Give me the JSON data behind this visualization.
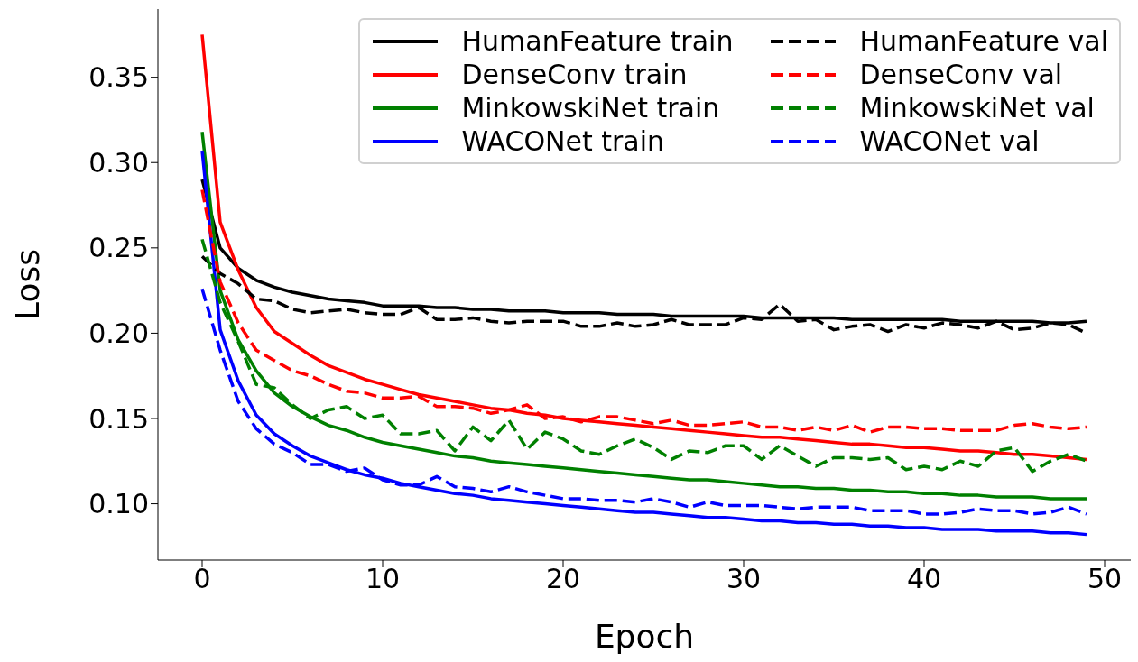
{
  "chart_data": {
    "type": "line",
    "xlabel": "Epoch",
    "ylabel": "Loss",
    "x": [
      0,
      1,
      2,
      3,
      4,
      5,
      6,
      7,
      8,
      9,
      10,
      11,
      12,
      13,
      14,
      15,
      16,
      17,
      18,
      19,
      20,
      21,
      22,
      23,
      24,
      25,
      26,
      27,
      28,
      29,
      30,
      31,
      32,
      33,
      34,
      35,
      36,
      37,
      38,
      39,
      40,
      41,
      42,
      43,
      44,
      45,
      46,
      47,
      48,
      49
    ],
    "xlim": [
      -2.45,
      51.45
    ],
    "xticks": [
      0,
      10,
      20,
      30,
      40,
      50
    ],
    "ylim": [
      0.067,
      0.39
    ],
    "yticks": [
      {
        "value": 0.1,
        "label": "0.10"
      },
      {
        "value": 0.15,
        "label": "0.15"
      },
      {
        "value": 0.2,
        "label": "0.20"
      },
      {
        "value": 0.25,
        "label": "0.25"
      },
      {
        "value": 0.3,
        "label": "0.30"
      },
      {
        "value": 0.35,
        "label": "0.35"
      }
    ],
    "grid": false,
    "legend": "top right",
    "marker": "none",
    "series": [
      {
        "name": "HumanFeature train",
        "color": "#000000",
        "line_style": "solid",
        "values": [
          0.29,
          0.25,
          0.238,
          0.231,
          0.227,
          0.224,
          0.222,
          0.22,
          0.219,
          0.218,
          0.216,
          0.216,
          0.216,
          0.215,
          0.215,
          0.214,
          0.214,
          0.213,
          0.213,
          0.213,
          0.212,
          0.212,
          0.212,
          0.211,
          0.211,
          0.211,
          0.21,
          0.21,
          0.21,
          0.21,
          0.21,
          0.209,
          0.209,
          0.209,
          0.209,
          0.209,
          0.208,
          0.208,
          0.208,
          0.208,
          0.208,
          0.208,
          0.207,
          0.207,
          0.207,
          0.207,
          0.207,
          0.206,
          0.206,
          0.207
        ]
      },
      {
        "name": "DenseConv train",
        "color": "#ff0000",
        "line_style": "solid",
        "values": [
          0.375,
          0.265,
          0.237,
          0.215,
          0.201,
          0.194,
          0.187,
          0.181,
          0.177,
          0.173,
          0.17,
          0.167,
          0.164,
          0.162,
          0.16,
          0.158,
          0.156,
          0.155,
          0.153,
          0.152,
          0.15,
          0.149,
          0.148,
          0.147,
          0.146,
          0.145,
          0.144,
          0.143,
          0.142,
          0.141,
          0.14,
          0.139,
          0.139,
          0.138,
          0.137,
          0.136,
          0.135,
          0.135,
          0.134,
          0.133,
          0.133,
          0.132,
          0.131,
          0.131,
          0.13,
          0.129,
          0.129,
          0.128,
          0.127,
          0.126
        ]
      },
      {
        "name": "MinkowskiNet train",
        "color": "#008000",
        "line_style": "solid",
        "values": [
          0.318,
          0.225,
          0.196,
          0.178,
          0.165,
          0.157,
          0.151,
          0.146,
          0.143,
          0.139,
          0.136,
          0.134,
          0.132,
          0.13,
          0.128,
          0.127,
          0.125,
          0.124,
          0.123,
          0.122,
          0.121,
          0.12,
          0.119,
          0.118,
          0.117,
          0.116,
          0.115,
          0.114,
          0.114,
          0.113,
          0.112,
          0.111,
          0.11,
          0.11,
          0.109,
          0.109,
          0.108,
          0.108,
          0.107,
          0.107,
          0.106,
          0.106,
          0.105,
          0.105,
          0.104,
          0.104,
          0.104,
          0.103,
          0.103,
          0.103
        ]
      },
      {
        "name": "WACONet train",
        "color": "#0000ff",
        "line_style": "solid",
        "values": [
          0.307,
          0.202,
          0.172,
          0.152,
          0.141,
          0.134,
          0.128,
          0.124,
          0.12,
          0.117,
          0.115,
          0.112,
          0.11,
          0.108,
          0.106,
          0.105,
          0.103,
          0.102,
          0.101,
          0.1,
          0.099,
          0.098,
          0.097,
          0.096,
          0.095,
          0.095,
          0.094,
          0.093,
          0.092,
          0.092,
          0.091,
          0.09,
          0.09,
          0.089,
          0.089,
          0.088,
          0.088,
          0.087,
          0.087,
          0.086,
          0.086,
          0.085,
          0.085,
          0.085,
          0.084,
          0.084,
          0.084,
          0.083,
          0.083,
          0.082
        ]
      },
      {
        "name": "HumanFeature val",
        "color": "#000000",
        "line_style": "dashed",
        "values": [
          0.245,
          0.235,
          0.229,
          0.22,
          0.219,
          0.214,
          0.212,
          0.213,
          0.214,
          0.212,
          0.211,
          0.211,
          0.215,
          0.208,
          0.208,
          0.209,
          0.207,
          0.206,
          0.207,
          0.207,
          0.207,
          0.204,
          0.204,
          0.206,
          0.204,
          0.205,
          0.208,
          0.205,
          0.205,
          0.205,
          0.209,
          0.208,
          0.217,
          0.207,
          0.208,
          0.202,
          0.204,
          0.205,
          0.201,
          0.205,
          0.203,
          0.206,
          0.205,
          0.203,
          0.207,
          0.202,
          0.203,
          0.206,
          0.205,
          0.2
        ]
      },
      {
        "name": "DenseConv val",
        "color": "#ff0000",
        "line_style": "dashed",
        "values": [
          0.284,
          0.23,
          0.206,
          0.19,
          0.184,
          0.178,
          0.175,
          0.17,
          0.166,
          0.165,
          0.162,
          0.162,
          0.163,
          0.157,
          0.157,
          0.156,
          0.153,
          0.155,
          0.158,
          0.15,
          0.151,
          0.148,
          0.151,
          0.151,
          0.149,
          0.147,
          0.149,
          0.146,
          0.146,
          0.147,
          0.148,
          0.145,
          0.145,
          0.143,
          0.145,
          0.143,
          0.146,
          0.142,
          0.145,
          0.145,
          0.144,
          0.144,
          0.143,
          0.143,
          0.143,
          0.146,
          0.147,
          0.145,
          0.144,
          0.145
        ]
      },
      {
        "name": "MinkowskiNet val",
        "color": "#008000",
        "line_style": "dashed",
        "values": [
          0.255,
          0.218,
          0.195,
          0.17,
          0.168,
          0.158,
          0.15,
          0.155,
          0.157,
          0.15,
          0.152,
          0.141,
          0.141,
          0.143,
          0.131,
          0.145,
          0.137,
          0.149,
          0.132,
          0.142,
          0.138,
          0.131,
          0.129,
          0.134,
          0.138,
          0.133,
          0.126,
          0.131,
          0.13,
          0.134,
          0.134,
          0.126,
          0.134,
          0.128,
          0.122,
          0.127,
          0.127,
          0.126,
          0.127,
          0.12,
          0.122,
          0.12,
          0.125,
          0.122,
          0.131,
          0.133,
          0.119,
          0.125,
          0.129,
          0.125
        ]
      },
      {
        "name": "WACONet val",
        "color": "#0000ff",
        "line_style": "dashed",
        "values": [
          0.226,
          0.19,
          0.16,
          0.144,
          0.135,
          0.13,
          0.123,
          0.123,
          0.119,
          0.121,
          0.114,
          0.111,
          0.111,
          0.116,
          0.11,
          0.109,
          0.107,
          0.11,
          0.107,
          0.105,
          0.103,
          0.103,
          0.102,
          0.102,
          0.101,
          0.103,
          0.101,
          0.098,
          0.101,
          0.099,
          0.099,
          0.099,
          0.098,
          0.097,
          0.098,
          0.098,
          0.098,
          0.096,
          0.096,
          0.096,
          0.094,
          0.094,
          0.095,
          0.097,
          0.096,
          0.096,
          0.094,
          0.095,
          0.098,
          0.094
        ]
      }
    ]
  }
}
